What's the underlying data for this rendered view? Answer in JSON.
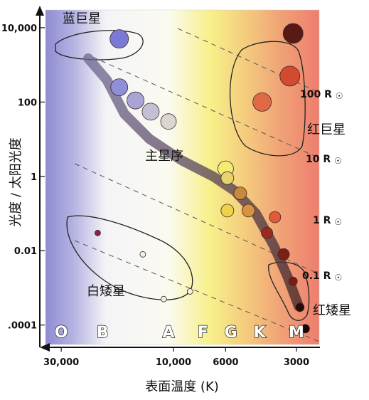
{
  "chart_data": {
    "type": "scatter",
    "title": "",
    "xlabel": "表面温度 (K)",
    "ylabel": "光度 / 太阳光度",
    "x_scale": "log_reversed",
    "y_scale": "log",
    "xlim": [
      35000,
      2400
    ],
    "ylim": [
      3e-05,
      30000
    ],
    "x_ticks": [
      {
        "value": 30000,
        "label": "30,000"
      },
      {
        "value": 10000,
        "label": "10,000"
      },
      {
        "value": 6000,
        "label": "6000"
      },
      {
        "value": 3000,
        "label": "3000"
      }
    ],
    "y_ticks": [
      {
        "value": 10000,
        "label": "10,000"
      },
      {
        "value": 100,
        "label": "100"
      },
      {
        "value": 1,
        "label": "1"
      },
      {
        "value": 0.01,
        "label": "0.01"
      },
      {
        "value": 0.0001,
        "label": ".0001"
      }
    ],
    "spectral_classes": [
      {
        "letter": "O",
        "temp": 30000
      },
      {
        "letter": "B",
        "temp": 20000
      },
      {
        "letter": "A",
        "temp": 10500
      },
      {
        "letter": "F",
        "temp": 7500
      },
      {
        "letter": "G",
        "temp": 5700
      },
      {
        "letter": "K",
        "temp": 4300
      },
      {
        "letter": "M",
        "temp": 3000
      }
    ],
    "regions": [
      {
        "name": "蓝巨星",
        "temp": 20000,
        "lum": 20000
      },
      {
        "name": "红巨星",
        "temp": 2900,
        "lum": 40
      },
      {
        "name": "主星序",
        "temp": 8000,
        "lum": 6
      },
      {
        "name": "白矮星",
        "temp": 16000,
        "lum": 0.0003
      },
      {
        "name": "红矮星",
        "temp": 2500,
        "lum": 8e-05
      }
    ],
    "radius_lines": [
      {
        "label": "100 R",
        "symbol": "☉"
      },
      {
        "label": "10 R",
        "symbol": "☉"
      },
      {
        "label": "1 R",
        "symbol": "☉"
      },
      {
        "label": "0.1 R",
        "symbol": "☉"
      }
    ],
    "stars": [
      {
        "group": "blue-giant",
        "temp": 17000,
        "lum": 5000,
        "color": "#7b79d6"
      },
      {
        "group": "main-sequence",
        "temp": 17000,
        "lum": 250,
        "color": "#8f8fd8"
      },
      {
        "group": "main-sequence",
        "temp": 14500,
        "lum": 110,
        "color": "#a8a4d4"
      },
      {
        "group": "main-sequence",
        "temp": 12500,
        "lum": 55,
        "color": "#c4bfd2"
      },
      {
        "group": "main-sequence",
        "temp": 10500,
        "lum": 30,
        "color": "#dad6d0"
      },
      {
        "group": "main-sequence",
        "temp": 6000,
        "lum": 1.6,
        "color": "#f3ec70"
      },
      {
        "group": "main-sequence",
        "temp": 5900,
        "lum": 0.9,
        "color": "#e8d46a"
      },
      {
        "group": "main-sequence",
        "temp": 5200,
        "lum": 0.35,
        "color": "#c9893a"
      },
      {
        "group": "main-sequence",
        "temp": 5900,
        "lum": 0.12,
        "color": "#efd24a"
      },
      {
        "group": "main-sequence",
        "temp": 4800,
        "lum": 0.12,
        "color": "#d8913c"
      },
      {
        "group": "main-sequence",
        "temp": 3700,
        "lum": 0.08,
        "color": "#e25a3a"
      },
      {
        "group": "main-sequence",
        "temp": 4000,
        "lum": 0.03,
        "color": "#9a2a1f"
      },
      {
        "group": "main-sequence",
        "temp": 3400,
        "lum": 0.008,
        "color": "#7d1e17"
      },
      {
        "group": "red-dwarf",
        "temp": 3100,
        "lum": 0.0015,
        "color": "#7a1c16"
      },
      {
        "group": "red-dwarf",
        "temp": 2900,
        "lum": 0.0003,
        "color": "#2a0a08"
      },
      {
        "group": "red-dwarf",
        "temp": 2750,
        "lum": 8e-05,
        "color": "#1a0504"
      },
      {
        "group": "red-giant",
        "temp": 3100,
        "lum": 7000,
        "color": "#5a1a14"
      },
      {
        "group": "red-giant",
        "temp": 3200,
        "lum": 500,
        "color": "#d24a30"
      },
      {
        "group": "red-giant",
        "temp": 4200,
        "lum": 100,
        "color": "#df6a45"
      },
      {
        "group": "white-dwarf",
        "temp": 21000,
        "lum": 0.03,
        "color": "#8a1f52"
      },
      {
        "group": "white-dwarf",
        "temp": 13500,
        "lum": 0.008,
        "color": "#f4f2e8"
      },
      {
        "group": "white-dwarf",
        "temp": 11000,
        "lum": 0.0005,
        "color": "#f0eed8"
      },
      {
        "group": "white-dwarf",
        "temp": 8500,
        "lum": 0.0008,
        "color": "#f4f2d8"
      }
    ]
  }
}
